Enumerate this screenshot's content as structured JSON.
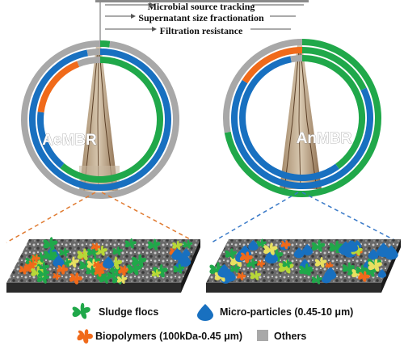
{
  "ring_labels": {
    "outer": "Microbial source tracking",
    "middle": "Supernatant size fractionation",
    "inner": "Filtration resistance"
  },
  "reactors": {
    "left": {
      "name": "AeMBR"
    },
    "right": {
      "name": "AnMBR"
    }
  },
  "legend": {
    "sludge_flocs": "Sludge flocs",
    "micro_particles": "Micro-particles (0.45-10 μm)",
    "biopolymers": "Biopolymers (100kDa-0.45 μm)",
    "others": "Others"
  },
  "colors": {
    "sludge_flocs": "#20a84a",
    "micro_particles": "#1870c0",
    "biopolymers": "#f06a1a",
    "others": "#a8a8a8"
  },
  "chart_data": [
    {
      "type": "pie",
      "reactor": "AeMBR",
      "rings": {
        "microbial_source_tracking": {
          "sludge_flocs": 0.02,
          "micro_particles": 0.0,
          "biopolymers": 0.0,
          "others": 0.98
        },
        "supernatant_size_fractionation": {
          "sludge_flocs": 0.0,
          "micro_particles": 0.97,
          "biopolymers": 0.0,
          "others": 0.03
        },
        "filtration_resistance": {
          "sludge_flocs": 0.61,
          "micro_particles": 0.16,
          "biopolymers": 0.17,
          "others": 0.06
        }
      }
    },
    {
      "type": "pie",
      "reactor": "AnMBR",
      "rings": {
        "microbial_source_tracking": {
          "sludge_flocs": 0.72,
          "micro_particles": 0.0,
          "biopolymers": 0.0,
          "others": 0.28
        },
        "supernatant_size_fractionation": {
          "sludge_flocs": 0.18,
          "micro_particles": 0.66,
          "biopolymers": 0.16,
          "others": 0.0
        },
        "filtration_resistance": {
          "sludge_flocs": 0.4,
          "micro_particles": 0.57,
          "biopolymers": 0.0,
          "others": 0.03
        }
      }
    }
  ]
}
